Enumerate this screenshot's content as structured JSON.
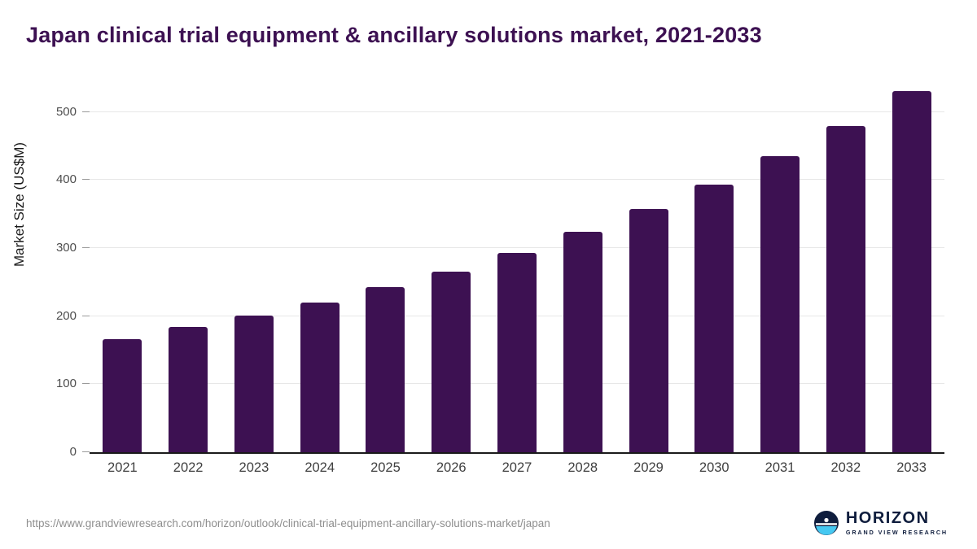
{
  "header": {
    "title": "Japan clinical trial equipment & ancillary solutions market, 2021-2033"
  },
  "chart_data": {
    "type": "bar",
    "title": "Japan clinical trial equipment & ancillary solutions market, 2021-2033",
    "categories": [
      "2021",
      "2022",
      "2023",
      "2024",
      "2025",
      "2026",
      "2027",
      "2028",
      "2029",
      "2030",
      "2031",
      "2032",
      "2033"
    ],
    "values": [
      166,
      184,
      201,
      220,
      243,
      266,
      293,
      324,
      357,
      393,
      435,
      480,
      531
    ],
    "xlabel": "",
    "ylabel": "Market Size (US$M)",
    "yticks": [
      0,
      100,
      200,
      300,
      400,
      500
    ],
    "ylim": [
      0,
      550
    ],
    "grid": true,
    "legend": false,
    "bar_color": "#3d1152",
    "gridline_color": "#e7e7e7",
    "axis_color": "#1a1a1a"
  },
  "footer": {
    "source_url": "https://www.grandviewresearch.com/horizon/outlook/clinical-trial-equipment-ancillary-solutions-market/japan",
    "logo": {
      "name": "HORIZON",
      "subtitle": "GRAND VIEW RESEARCH",
      "icon": "horizon-circle-icon",
      "navy": "#0f1d3d",
      "light_blue": "#45c8f1"
    }
  }
}
